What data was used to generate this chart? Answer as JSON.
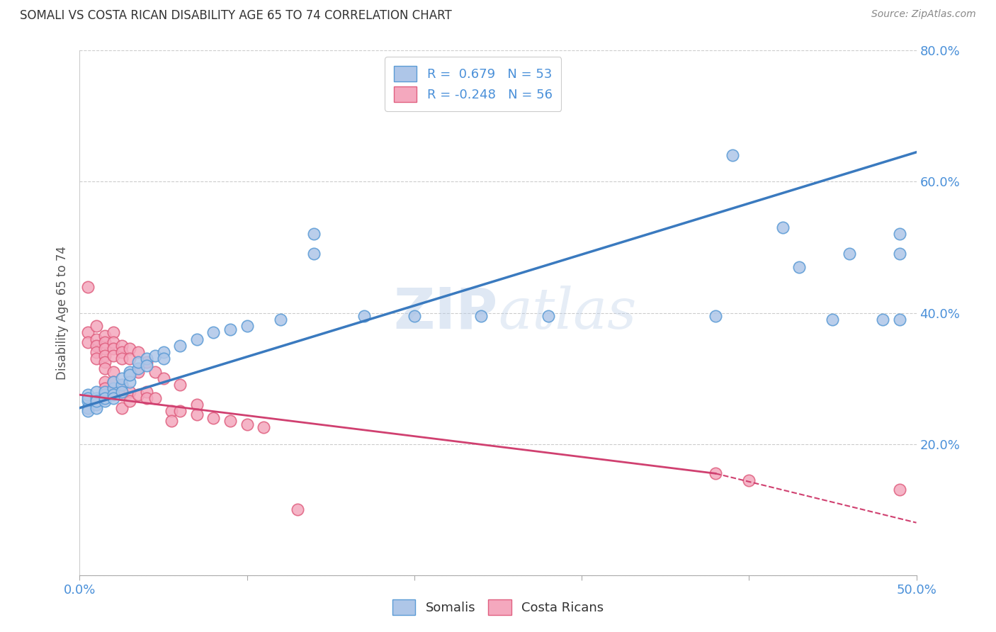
{
  "title": "SOMALI VS COSTA RICAN DISABILITY AGE 65 TO 74 CORRELATION CHART",
  "source": "Source: ZipAtlas.com",
  "ylabel_label": "Disability Age 65 to 74",
  "x_min": 0.0,
  "x_max": 0.5,
  "y_min": 0.0,
  "y_max": 0.8,
  "x_ticks": [
    0.0,
    0.1,
    0.2,
    0.3,
    0.4,
    0.5
  ],
  "x_tick_labels": [
    "0.0%",
    "",
    "",
    "",
    "",
    "50.0%"
  ],
  "y_ticks": [
    0.0,
    0.2,
    0.4,
    0.6,
    0.8
  ],
  "y_tick_labels_left": [
    "",
    "",
    "",
    "",
    ""
  ],
  "y_tick_labels_right": [
    "",
    "20.0%",
    "40.0%",
    "60.0%",
    "80.0%"
  ],
  "somali_color": "#aec6e8",
  "somali_edge_color": "#5b9bd5",
  "costa_rican_color": "#f4a8be",
  "costa_rican_edge_color": "#e06080",
  "regression_somali_color": "#3a7abf",
  "regression_costa_rican_color": "#d04070",
  "watermark_text": "ZIPatlas",
  "background_color": "#ffffff",
  "grid_color": "#cccccc",
  "tick_color": "#4a90d9",
  "legend_label_somali": "R =  0.679   N = 53",
  "legend_label_costa": "R = -0.248   N = 56",
  "bottom_legend_somali": "Somalis",
  "bottom_legend_costa": "Costa Ricans",
  "somali_points": [
    [
      0.005,
      0.265
    ],
    [
      0.005,
      0.275
    ],
    [
      0.005,
      0.255
    ],
    [
      0.005,
      0.25
    ],
    [
      0.005,
      0.27
    ],
    [
      0.01,
      0.26
    ],
    [
      0.01,
      0.27
    ],
    [
      0.01,
      0.28
    ],
    [
      0.01,
      0.255
    ],
    [
      0.01,
      0.265
    ],
    [
      0.015,
      0.275
    ],
    [
      0.015,
      0.28
    ],
    [
      0.015,
      0.265
    ],
    [
      0.015,
      0.27
    ],
    [
      0.02,
      0.285
    ],
    [
      0.02,
      0.275
    ],
    [
      0.02,
      0.295
    ],
    [
      0.02,
      0.27
    ],
    [
      0.025,
      0.29
    ],
    [
      0.025,
      0.3
    ],
    [
      0.025,
      0.28
    ],
    [
      0.03,
      0.31
    ],
    [
      0.03,
      0.295
    ],
    [
      0.03,
      0.305
    ],
    [
      0.035,
      0.315
    ],
    [
      0.035,
      0.325
    ],
    [
      0.04,
      0.33
    ],
    [
      0.04,
      0.32
    ],
    [
      0.045,
      0.335
    ],
    [
      0.05,
      0.34
    ],
    [
      0.05,
      0.33
    ],
    [
      0.06,
      0.35
    ],
    [
      0.07,
      0.36
    ],
    [
      0.08,
      0.37
    ],
    [
      0.09,
      0.375
    ],
    [
      0.1,
      0.38
    ],
    [
      0.12,
      0.39
    ],
    [
      0.14,
      0.52
    ],
    [
      0.14,
      0.49
    ],
    [
      0.17,
      0.395
    ],
    [
      0.2,
      0.395
    ],
    [
      0.24,
      0.395
    ],
    [
      0.28,
      0.395
    ],
    [
      0.38,
      0.395
    ],
    [
      0.43,
      0.47
    ],
    [
      0.45,
      0.39
    ],
    [
      0.46,
      0.49
    ],
    [
      0.48,
      0.39
    ],
    [
      0.49,
      0.39
    ],
    [
      0.42,
      0.53
    ],
    [
      0.39,
      0.64
    ],
    [
      0.49,
      0.49
    ],
    [
      0.49,
      0.52
    ]
  ],
  "costa_rican_points": [
    [
      0.005,
      0.44
    ],
    [
      0.005,
      0.37
    ],
    [
      0.005,
      0.355
    ],
    [
      0.01,
      0.38
    ],
    [
      0.01,
      0.36
    ],
    [
      0.01,
      0.35
    ],
    [
      0.01,
      0.34
    ],
    [
      0.01,
      0.33
    ],
    [
      0.015,
      0.365
    ],
    [
      0.015,
      0.355
    ],
    [
      0.015,
      0.345
    ],
    [
      0.015,
      0.335
    ],
    [
      0.015,
      0.325
    ],
    [
      0.015,
      0.315
    ],
    [
      0.015,
      0.295
    ],
    [
      0.015,
      0.285
    ],
    [
      0.02,
      0.37
    ],
    [
      0.02,
      0.355
    ],
    [
      0.02,
      0.345
    ],
    [
      0.02,
      0.335
    ],
    [
      0.02,
      0.31
    ],
    [
      0.02,
      0.295
    ],
    [
      0.02,
      0.28
    ],
    [
      0.025,
      0.35
    ],
    [
      0.025,
      0.34
    ],
    [
      0.025,
      0.33
    ],
    [
      0.025,
      0.29
    ],
    [
      0.025,
      0.275
    ],
    [
      0.025,
      0.255
    ],
    [
      0.03,
      0.345
    ],
    [
      0.03,
      0.33
    ],
    [
      0.03,
      0.28
    ],
    [
      0.03,
      0.265
    ],
    [
      0.035,
      0.34
    ],
    [
      0.035,
      0.31
    ],
    [
      0.035,
      0.275
    ],
    [
      0.04,
      0.325
    ],
    [
      0.04,
      0.28
    ],
    [
      0.04,
      0.27
    ],
    [
      0.045,
      0.31
    ],
    [
      0.045,
      0.27
    ],
    [
      0.05,
      0.3
    ],
    [
      0.055,
      0.25
    ],
    [
      0.055,
      0.235
    ],
    [
      0.06,
      0.29
    ],
    [
      0.06,
      0.25
    ],
    [
      0.07,
      0.26
    ],
    [
      0.07,
      0.245
    ],
    [
      0.08,
      0.24
    ],
    [
      0.09,
      0.235
    ],
    [
      0.1,
      0.23
    ],
    [
      0.11,
      0.225
    ],
    [
      0.13,
      0.1
    ],
    [
      0.38,
      0.155
    ],
    [
      0.4,
      0.145
    ],
    [
      0.49,
      0.13
    ]
  ]
}
